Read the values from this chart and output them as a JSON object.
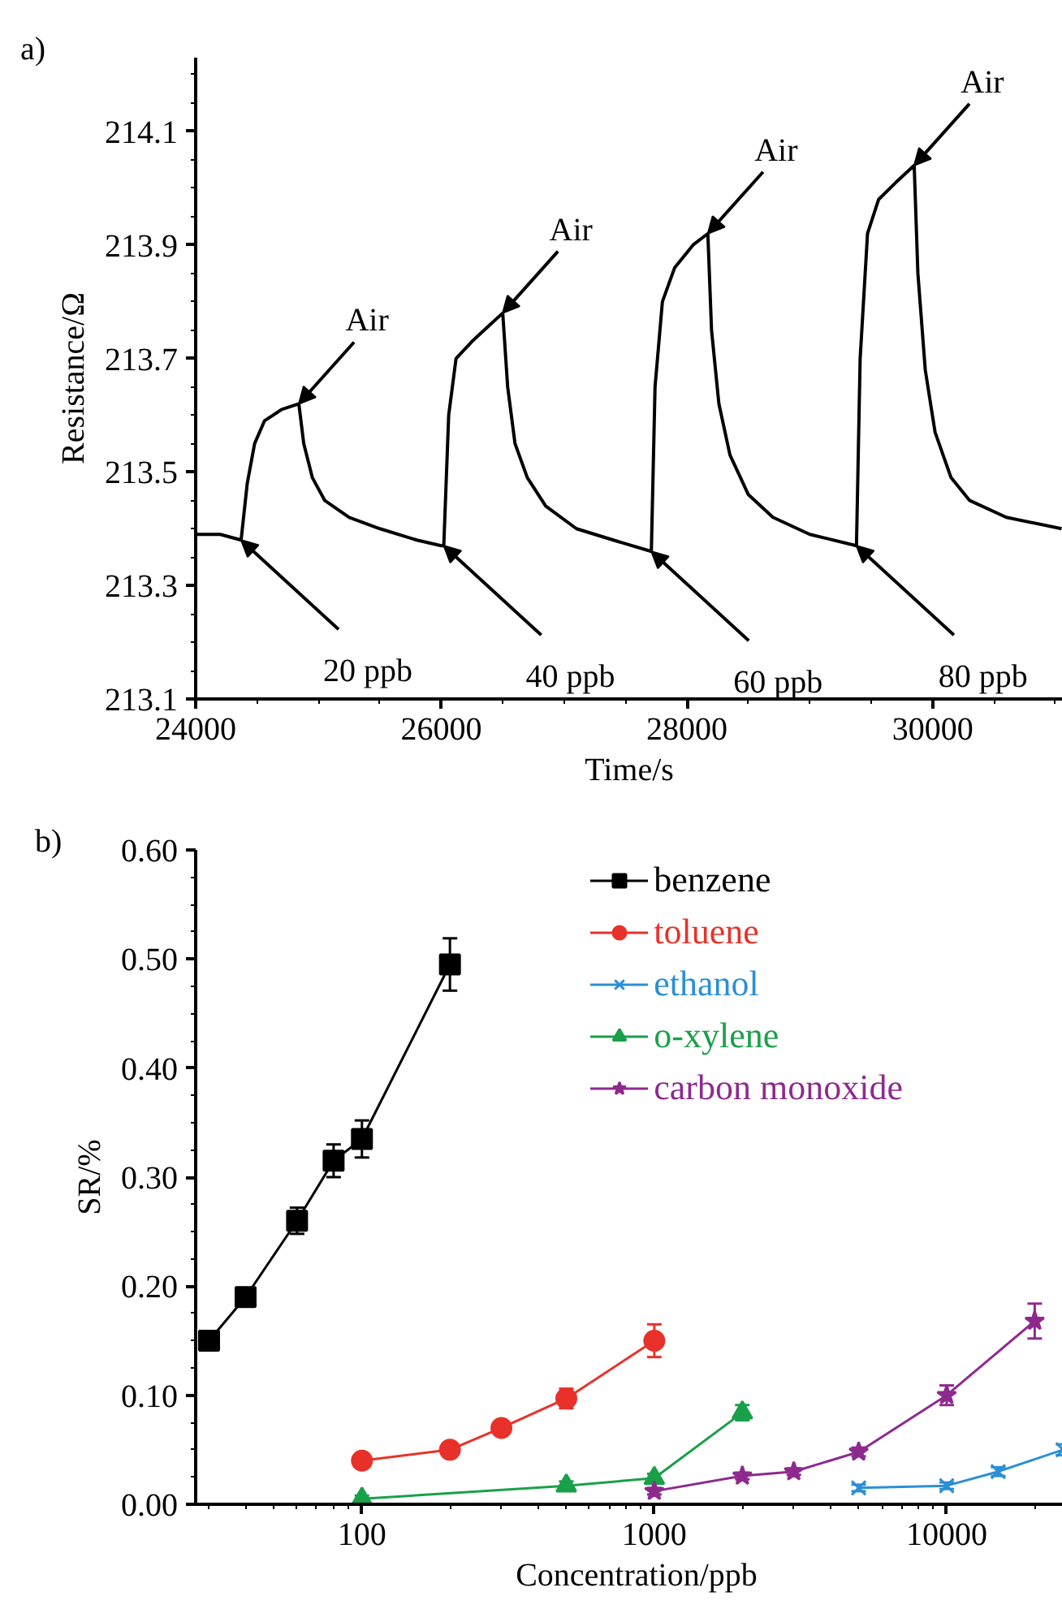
{
  "chart_data": [
    {
      "type": "line",
      "title": "a)",
      "xlabel": "Time/s",
      "ylabel": "Resistance/Ω",
      "xlim": [
        24000,
        31060
      ],
      "ylim": [
        213.1,
        214.23
      ],
      "xticks": [
        24000,
        26000,
        28000,
        30000
      ],
      "yticks": [
        213.1,
        213.3,
        213.5,
        213.7,
        213.9,
        214.1
      ],
      "grid": false,
      "legend": false,
      "series": [
        {
          "color": "#000000",
          "x": [
            24000,
            24200,
            24370,
            24420,
            24480,
            24560,
            24700,
            24840,
            24880,
            24950,
            25050,
            25250,
            25500,
            25800,
            26000,
            26020,
            26060,
            26120,
            26250,
            26400,
            26500,
            26540,
            26600,
            26700,
            26850,
            27100,
            27400,
            27710,
            27740,
            27800,
            27900,
            28050,
            28170,
            28200,
            28260,
            28350,
            28500,
            28700,
            29000,
            29380,
            29410,
            29470,
            29560,
            29700,
            29850,
            29880,
            29940,
            30020,
            30150,
            30300,
            30600,
            31050
          ],
          "values": [
            213.39,
            213.39,
            213.38,
            213.48,
            213.55,
            213.59,
            213.61,
            213.62,
            213.55,
            213.49,
            213.45,
            213.42,
            213.4,
            213.38,
            213.37,
            213.37,
            213.6,
            213.7,
            213.73,
            213.76,
            213.78,
            213.65,
            213.55,
            213.49,
            213.44,
            213.4,
            213.38,
            213.36,
            213.65,
            213.8,
            213.86,
            213.9,
            213.92,
            213.75,
            213.62,
            213.53,
            213.46,
            213.42,
            213.39,
            213.37,
            213.7,
            213.92,
            213.98,
            214.01,
            214.04,
            213.85,
            213.68,
            213.57,
            213.49,
            213.45,
            213.42,
            213.4
          ]
        }
      ],
      "annotations": [
        {
          "text": "Air",
          "x": 24840,
          "y": 213.62
        },
        {
          "text": "Air",
          "x": 26500,
          "y": 213.78
        },
        {
          "text": "Air",
          "x": 28170,
          "y": 213.92
        },
        {
          "text": "Air",
          "x": 29850,
          "y": 214.04
        },
        {
          "text": "20 ppb",
          "x": 24370,
          "y": 213.38
        },
        {
          "text": "40 ppb",
          "x": 26020,
          "y": 213.37
        },
        {
          "text": "60 ppb",
          "x": 27710,
          "y": 213.36
        },
        {
          "text": "80 ppb",
          "x": 29380,
          "y": 213.37
        }
      ]
    },
    {
      "type": "line",
      "title": "b)",
      "xlabel": "Concentration/ppb",
      "ylabel": "SR/%",
      "log": "x",
      "xlim": [
        27,
        28000
      ],
      "ylim": [
        0,
        0.6
      ],
      "xticks": [
        100,
        1000,
        10000
      ],
      "yticks": [
        {
          "value": 0,
          "label": "0.00"
        },
        {
          "value": 0.1,
          "label": "0.10"
        },
        {
          "value": 0.2,
          "label": "0.20"
        },
        {
          "value": 0.3,
          "label": "0.30"
        },
        {
          "value": 0.4,
          "label": "0.40"
        },
        {
          "value": 0.5,
          "label": "0.50"
        },
        {
          "value": 0.6,
          "label": "0.60"
        }
      ],
      "grid": false,
      "legend": "top right",
      "series": [
        {
          "name": "benzene",
          "color": "#000000",
          "marker": "square",
          "x": [
            30,
            40,
            60,
            80,
            100,
            200
          ],
          "values": [
            0.15,
            0.19,
            0.26,
            0.315,
            0.335,
            0.495
          ],
          "errors": [
            0.005,
            0.008,
            0.012,
            0.015,
            0.017,
            0.024
          ]
        },
        {
          "name": "toluene",
          "color": "#e8312a",
          "marker": "circle",
          "x": [
            100,
            200,
            300,
            500,
            1000
          ],
          "values": [
            0.04,
            0.05,
            0.07,
            0.097,
            0.15
          ],
          "errors": [
            0.003,
            0.003,
            0.006,
            0.009,
            0.015
          ]
        },
        {
          "name": "ethanol",
          "color": "#2a8fd6",
          "marker": "cross",
          "x": [
            5000,
            10000,
            15000,
            25000
          ],
          "values": [
            0.015,
            0.017,
            0.03,
            0.05
          ],
          "errors": [
            0.003,
            0.003,
            0.004,
            0.005
          ]
        },
        {
          "name": "o-xylene",
          "color": "#1aa04a",
          "marker": "triangle",
          "x": [
            100,
            500,
            1000,
            2000
          ],
          "values": [
            0.005,
            0.017,
            0.024,
            0.084
          ],
          "errors": [
            0.003,
            0.004,
            0.004,
            0.007
          ]
        },
        {
          "name": "carbon monoxide",
          "color": "#8e2a8e",
          "marker": "star",
          "x": [
            1000,
            2000,
            3000,
            5000,
            10000,
            20000
          ],
          "values": [
            0.012,
            0.026,
            0.03,
            0.048,
            0.1,
            0.168
          ],
          "errors": [
            0.003,
            0.003,
            0.003,
            0.004,
            0.009,
            0.016
          ]
        }
      ]
    }
  ]
}
